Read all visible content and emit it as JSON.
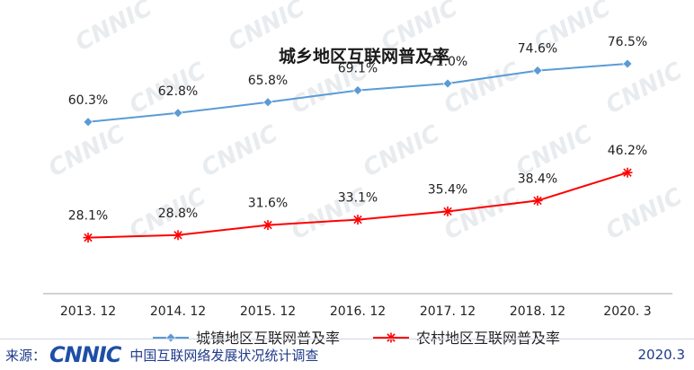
{
  "chart_data": {
    "type": "line",
    "title": "城乡地区互联网普及率",
    "categories": [
      "2013. 12",
      "2014. 12",
      "2015. 12",
      "2016. 12",
      "2017. 12",
      "2018. 12",
      "2020. 3"
    ],
    "series": [
      {
        "name": "城镇地区互联网普及率",
        "values": [
          60.3,
          62.8,
          65.8,
          69.1,
          71.0,
          74.6,
          76.5
        ],
        "labels": [
          "60.3%",
          "62.8%",
          "65.8%",
          "69.1%",
          "71.0%",
          "74.6%",
          "76.5%"
        ],
        "color": "#5b9bd5",
        "marker": "diamond"
      },
      {
        "name": "农村地区互联网普及率",
        "values": [
          28.1,
          28.8,
          31.6,
          33.1,
          35.4,
          38.4,
          46.2
        ],
        "labels": [
          "28.1%",
          "28.8%",
          "31.6%",
          "33.1%",
          "35.4%",
          "38.4%",
          "46.2%"
        ],
        "color": "#ff0000",
        "marker": "asterisk"
      }
    ],
    "ylim": [
      0,
      90
    ],
    "grid": false,
    "legend_position": "bottom-center"
  },
  "watermark": "CNNIC",
  "footer": {
    "source_label": "来源：",
    "logo_text": "CNNIC",
    "org_text": "中国互联网络发展状况统计调查",
    "date_text": "2020.3"
  }
}
